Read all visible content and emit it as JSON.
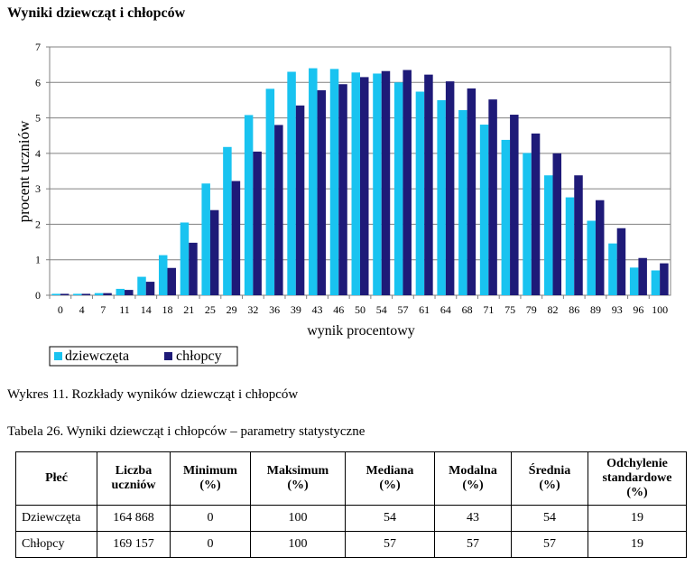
{
  "title": "Wyniki dziewcząt i chłopców",
  "caption": "Wykres 11.  Rozkłady wyników dziewcząt i chłopców",
  "table_title": "Tabela 26.  Wyniki dziewcząt i chłopców – parametry statystyczne",
  "chart_data": {
    "type": "bar",
    "xlabel": "wynik procentowy",
    "ylabel": "procent uczniów",
    "ylim": [
      0,
      7
    ],
    "yticks": [
      "0",
      "1",
      "2",
      "3",
      "4",
      "5",
      "6",
      "7"
    ],
    "grid": true,
    "legend_placement": "bottom-left",
    "categories": [
      "0",
      "4",
      "7",
      "11",
      "14",
      "18",
      "21",
      "25",
      "29",
      "32",
      "36",
      "39",
      "43",
      "46",
      "50",
      "54",
      "57",
      "61",
      "64",
      "68",
      "71",
      "75",
      "79",
      "82",
      "86",
      "89",
      "93",
      "96",
      "100"
    ],
    "series": [
      {
        "name": "dziewczęta",
        "color": "#19C3F0",
        "values": [
          0.04,
          0.04,
          0.06,
          0.18,
          0.52,
          1.13,
          2.05,
          3.15,
          4.18,
          5.08,
          5.82,
          6.3,
          6.4,
          6.38,
          6.28,
          6.25,
          6.0,
          5.74,
          5.5,
          5.22,
          4.81,
          4.38,
          4.01,
          3.38,
          2.76,
          2.1,
          1.46,
          0.78,
          0.7
        ]
      },
      {
        "name": "chłopcy",
        "color": "#1E1A78",
        "values": [
          0.04,
          0.04,
          0.06,
          0.15,
          0.38,
          0.77,
          1.48,
          2.4,
          3.22,
          4.05,
          4.8,
          5.35,
          5.78,
          5.95,
          6.15,
          6.32,
          6.35,
          6.22,
          6.03,
          5.83,
          5.52,
          5.09,
          4.56,
          4.0,
          3.38,
          2.68,
          1.89,
          1.05,
          0.9
        ]
      }
    ]
  },
  "table": {
    "headers": [
      "Płeć",
      "Liczba uczniów",
      "Minimum (%)",
      "Maksimum (%)",
      "Mediana (%)",
      "Modalna (%)",
      "Średnia (%)",
      "Odchylenie standardowe (%)"
    ],
    "header_lines": [
      [
        "Płeć"
      ],
      [
        "Liczba",
        "uczniów"
      ],
      [
        "Minimum",
        "(%)"
      ],
      [
        "Maksimum",
        "(%)"
      ],
      [
        "Mediana",
        "(%)"
      ],
      [
        "Modalna",
        "(%)"
      ],
      [
        "Średnia",
        "(%)"
      ],
      [
        "Odchylenie",
        "standardowe",
        "(%)"
      ]
    ],
    "rows": [
      [
        "Dziewczęta",
        "164 868",
        "0",
        "100",
        "54",
        "43",
        "54",
        "19"
      ],
      [
        "Chłopcy",
        "169 157",
        "0",
        "100",
        "57",
        "57",
        "57",
        "19"
      ]
    ]
  }
}
